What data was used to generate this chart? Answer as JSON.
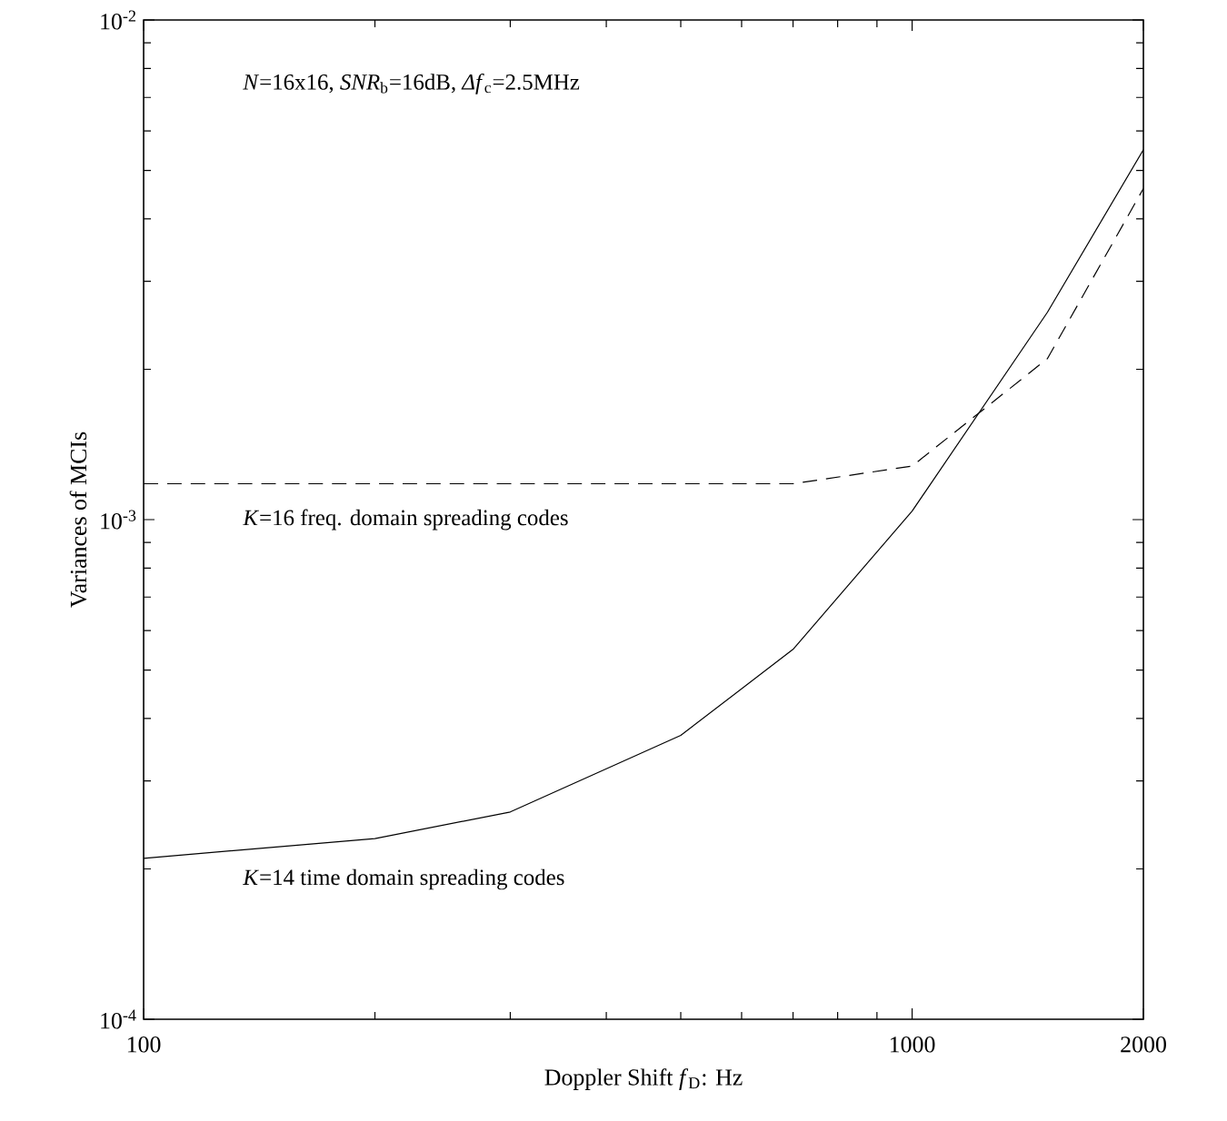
{
  "chart_data": {
    "type": "line",
    "xlabel": "Doppler Shift *f*$_{D}$: Hz",
    "ylabel": "Variances of MCIs",
    "log": "xy",
    "marker": "none",
    "xlim": [
      100,
      2000
    ],
    "xticks": [
      100,
      1000,
      2000
    ],
    "ylim": [
      0.0001,
      0.01
    ],
    "yticks": [
      {
        "value": 0.0001,
        "label": "10$^{-4}$"
      },
      {
        "value": 0.001,
        "label": "10$^{-3}$"
      },
      {
        "value": 0.01,
        "label": "10$^{-2}$"
      }
    ],
    "x": [
      100,
      200,
      300,
      500,
      700,
      1000,
      1500,
      2000
    ],
    "series": [
      {
        "color": "#000000",
        "line_style": "solid",
        "values": [
          0.00021,
          0.00023,
          0.00026,
          0.00037,
          0.00055,
          0.00104,
          0.0026,
          0.0055
        ]
      },
      {
        "color": "#000000",
        "line_style": "dashed",
        "values": [
          0.00118,
          0.00118,
          0.00118,
          0.00118,
          0.00118,
          0.00128,
          0.0021,
          0.0046
        ]
      }
    ],
    "annotations": [
      "*N*=16x16, *SNR*$_{b}$=16dB, *Δf*$_{c}$=2.5MHz",
      "*K*=16 freq. domain spreading codes",
      "*K*=14 time domain spreading codes"
    ]
  }
}
